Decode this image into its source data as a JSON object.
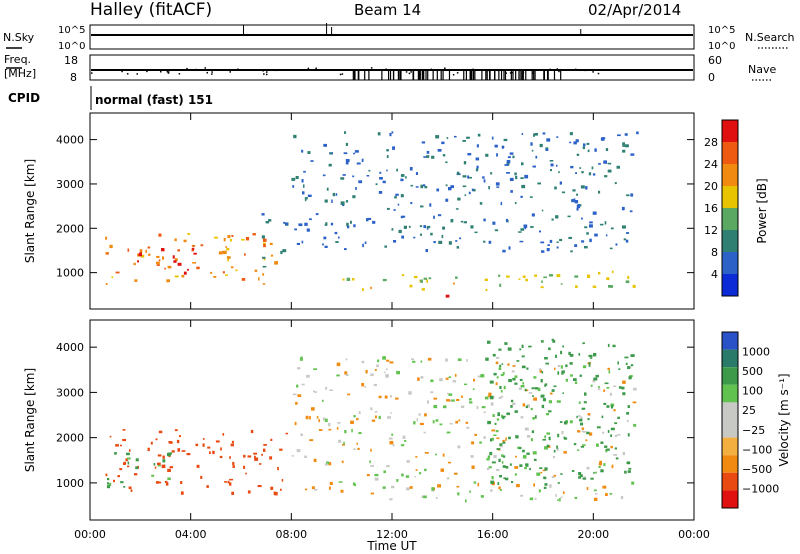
{
  "header": {
    "station": "Halley (fitACF)",
    "beam": "Beam 14",
    "date": "02/Apr/2014"
  },
  "panels": {
    "nsky_label": "N.Sky",
    "nsearch_label": "N.Search",
    "freq_label_1": "Freq.",
    "freq_label_2": "[MHz]",
    "nave_label": "Nave",
    "cpid_label": "CPID",
    "cpid_value": "normal (fast) 151",
    "noise_ticks": [
      "10^5",
      "10^0"
    ],
    "freq_ticks": [
      "18",
      "8"
    ],
    "nave_ticks": [
      "60",
      "0"
    ]
  },
  "colors": {
    "power": [
      "#0b2bd6",
      "#2c62c8",
      "#2f7f73",
      "#5aa861",
      "#e8c400",
      "#f08a10",
      "#ee5a12",
      "#e01010"
    ],
    "velocity_neg": [
      "#e01010",
      "#e84a12",
      "#f08a10",
      "#f3b040"
    ],
    "velocity_mid": "#c8c8c4",
    "velocity_pos": [
      "#62c250",
      "#3c9a4a",
      "#2a7a6a",
      "#2a52c8"
    ]
  },
  "chart_data": [
    {
      "type": "heatmap",
      "xlabel": "Time UT",
      "ylabel": "Slant Range [km]",
      "xlim": [
        0,
        24
      ],
      "ylim": [
        180,
        4600
      ],
      "xticks": [
        "00:00",
        "04:00",
        "08:00",
        "12:00",
        "16:00",
        "20:00",
        "00:00"
      ],
      "yticks": [
        "1000",
        "2000",
        "3000",
        "4000"
      ],
      "colorbar": {
        "label": "Power [dB]",
        "ticks": [
          "4",
          "8",
          "12",
          "16",
          "20",
          "24",
          "28"
        ],
        "range": [
          0,
          30
        ]
      },
      "regions": [
        {
          "t0": 0.6,
          "t1": 7.4,
          "r0": 760,
          "r1": 1900,
          "level": 21
        },
        {
          "t0": 1.8,
          "t1": 4.2,
          "r0": 950,
          "r1": 1650,
          "level": 27
        },
        {
          "t0": 6.8,
          "t1": 7.9,
          "r0": 1150,
          "r1": 2350,
          "level": 9
        },
        {
          "t0": 8.0,
          "t1": 21.7,
          "r0": 1500,
          "r1": 4200,
          "level": 7
        },
        {
          "t0": 9.8,
          "t1": 21.6,
          "r0": 630,
          "r1": 1050,
          "level": 16
        },
        {
          "t0": 13.8,
          "t1": 14.6,
          "r0": 360,
          "r1": 520,
          "level": 29
        }
      ]
    },
    {
      "type": "heatmap",
      "xlabel": "Time UT",
      "ylabel": "Slant Range [km]",
      "xlim": [
        0,
        24
      ],
      "ylim": [
        180,
        4600
      ],
      "xticks": [
        "00:00",
        "04:00",
        "08:00",
        "12:00",
        "16:00",
        "20:00",
        "00:00"
      ],
      "yticks": [
        "1000",
        "2000",
        "3000",
        "4000"
      ],
      "colorbar": {
        "label": "Velocity [m s⁻¹]",
        "ticks": [
          "1000",
          "500",
          "100",
          "25",
          "−25",
          "−100",
          "−500",
          "−1000"
        ]
      },
      "regions": [
        {
          "t0": 0.6,
          "t1": 7.9,
          "r0": 800,
          "r1": 2200,
          "velocity": -300
        },
        {
          "t0": 0.6,
          "t1": 3.2,
          "r0": 900,
          "r1": 1700,
          "velocity": 150
        },
        {
          "t0": 8.0,
          "t1": 21.6,
          "r0": 630,
          "r1": 3800,
          "velocity": 0
        },
        {
          "t0": 15.6,
          "t1": 21.6,
          "r0": 900,
          "r1": 4200,
          "velocity": 300
        }
      ]
    }
  ]
}
